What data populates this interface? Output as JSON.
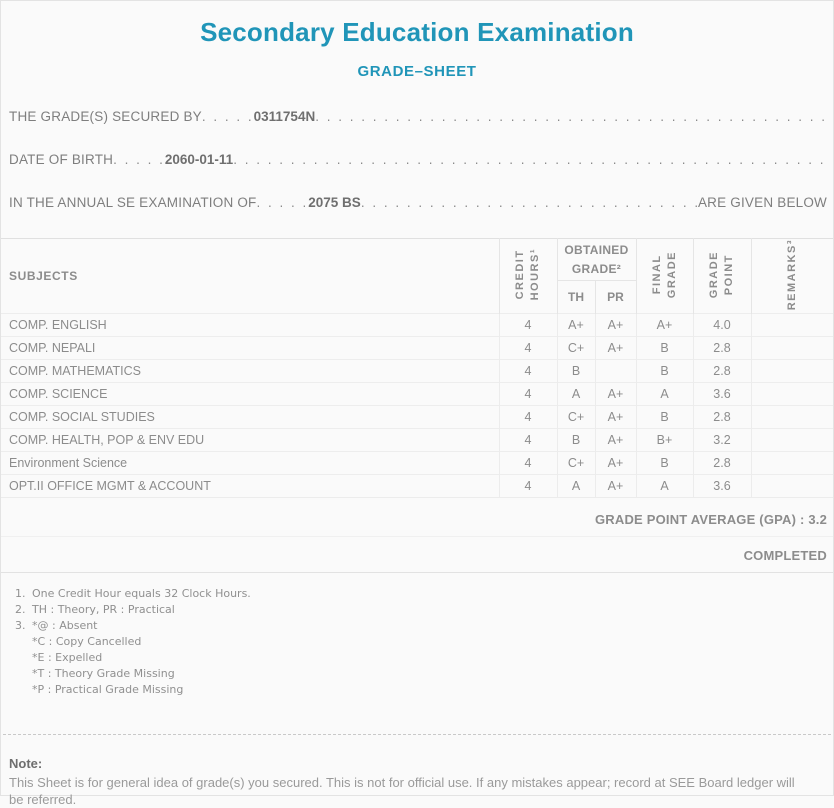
{
  "page": {
    "title": "Secondary Education Examination",
    "subtitle": "GRADE–SHEET"
  },
  "info": {
    "lines": [
      {
        "label": "THE GRADE(S) SECURED BY",
        "value": "0311754N",
        "suffix": ""
      },
      {
        "label": "DATE OF BIRTH",
        "value": "2060-01-11",
        "suffix": ""
      },
      {
        "label": "IN THE ANNUAL SE EXAMINATION OF",
        "value": "2075 BS",
        "suffix": "ARE GIVEN BELOW"
      }
    ]
  },
  "table": {
    "headers": {
      "subjects": "SUBJECTS",
      "credit_hours": "CREDIT\nHOURS¹",
      "obtained_grade": "OBTAINED\nGRADE²",
      "th": "TH",
      "pr": "PR",
      "final_grade": "FINAL\nGRADE",
      "grade_point": "GRADE\nPOINT",
      "remarks": "REMARKS³"
    },
    "rows": [
      {
        "subject": "COMP. ENGLISH",
        "credit": "4",
        "th": "A+",
        "pr": "A+",
        "final": "A+",
        "point": "4.0",
        "remarks": ""
      },
      {
        "subject": "COMP. NEPALI",
        "credit": "4",
        "th": "C+",
        "pr": "A+",
        "final": "B",
        "point": "2.8",
        "remarks": ""
      },
      {
        "subject": "COMP. MATHEMATICS",
        "credit": "4",
        "th": "B",
        "pr": "",
        "final": "B",
        "point": "2.8",
        "remarks": ""
      },
      {
        "subject": "COMP. SCIENCE",
        "credit": "4",
        "th": "A",
        "pr": "A+",
        "final": "A",
        "point": "3.6",
        "remarks": ""
      },
      {
        "subject": "COMP. SOCIAL STUDIES",
        "credit": "4",
        "th": "C+",
        "pr": "A+",
        "final": "B",
        "point": "2.8",
        "remarks": ""
      },
      {
        "subject": "COMP. HEALTH, POP & ENV EDU",
        "credit": "4",
        "th": "B",
        "pr": "A+",
        "final": "B+",
        "point": "3.2",
        "remarks": ""
      },
      {
        "subject": "Environment Science",
        "credit": "4",
        "th": "C+",
        "pr": "A+",
        "final": "B",
        "point": "2.8",
        "remarks": ""
      },
      {
        "subject": "OPT.II OFFICE MGMT & ACCOUNT",
        "credit": "4",
        "th": "A",
        "pr": "A+",
        "final": "A",
        "point": "3.6",
        "remarks": ""
      }
    ]
  },
  "summary": {
    "gpa_label": "GRADE POINT AVERAGE (GPA) : ",
    "gpa_value": "3.2",
    "status": "COMPLETED"
  },
  "footnotes": [
    {
      "num": "1.",
      "text": "One Credit Hour equals 32 Clock Hours."
    },
    {
      "num": "2.",
      "text": "TH : Theory, PR : Practical"
    },
    {
      "num": "3.",
      "text": "*@ : Absent",
      "sub": [
        "*C : Copy Cancelled",
        "*E : Expelled",
        "*T : Theory Grade Missing",
        "*P : Practical Grade Missing"
      ]
    }
  ],
  "note": {
    "heading": "Note:",
    "text": "This Sheet is for general idea of grade(s) you secured. This is not for official use. If any mistakes appear; record at SEE Board ledger will be referred."
  },
  "colors": {
    "accent_teal": "#2095b8",
    "body_grey": "#8a8a8a",
    "border_light": "#e5e5e5"
  }
}
